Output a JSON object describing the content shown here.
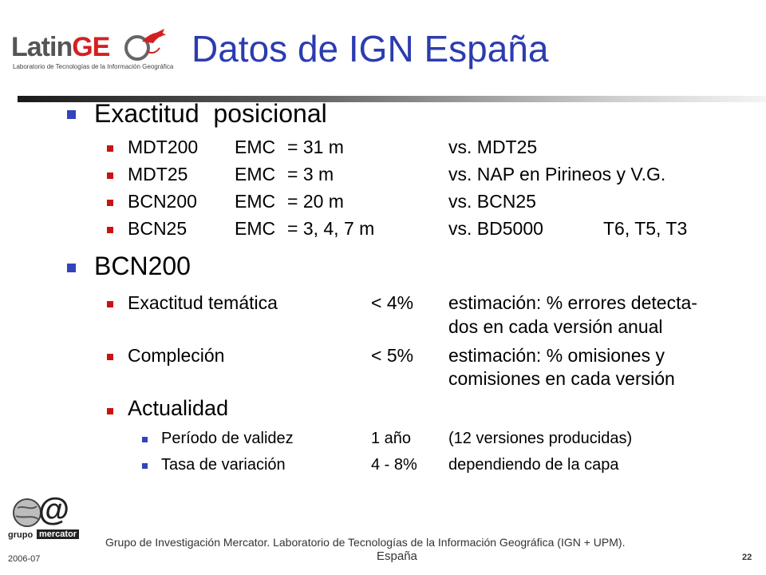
{
  "header": {
    "title": "Datos de IGN España",
    "logo": {
      "name": "LatinGE",
      "name_part1": "Latin",
      "name_part2": "GE",
      "subtitle": "Laboratorio de Tecnologías de la Información Geográfica"
    }
  },
  "content": {
    "exactitud": {
      "heading": "Exactitud  posicional",
      "rows": [
        {
          "product": "MDT200",
          "metric": "EMC",
          "value": "= 31 m",
          "ref": "vs. MDT25",
          "extra": ""
        },
        {
          "product": "MDT25",
          "metric": "EMC",
          "value": "= 3 m",
          "ref": "vs. NAP en Pirineos y V.G.",
          "extra": ""
        },
        {
          "product": "BCN200",
          "metric": "EMC",
          "value": "= 20 m",
          "ref": "vs. BCN25",
          "extra": ""
        },
        {
          "product": "BCN25",
          "metric": "EMC",
          "value": "= 3, 4, 7 m",
          "ref": "vs. BD5000",
          "extra": "T6, T5, T3"
        }
      ]
    },
    "bcn200": {
      "heading": "BCN200",
      "items": [
        {
          "label": "Exactitud temática",
          "value": "< 4%",
          "desc_line1": "estimación: % errores detecta-",
          "desc_line2": "dos en cada versión anual"
        },
        {
          "label": "Compleción",
          "value": "< 5%",
          "desc_line1": "estimación: % omisiones y",
          "desc_line2": "comisiones en cada versión"
        }
      ],
      "actualidad": {
        "heading": "Actualidad",
        "rows": [
          {
            "label": "Período de validez",
            "value": "1 año",
            "desc": "(12 versiones producidas)"
          },
          {
            "label": "Tasa de variación",
            "value": "4 - 8%",
            "desc": "dependiendo de la capa"
          }
        ]
      }
    }
  },
  "footer": {
    "line1": "Grupo de Investigación Mercator. Laboratorio de Tecnologías de la Información Geográfica (IGN + UPM).",
    "line2": "España",
    "date": "2006-07",
    "page": "22",
    "logo_text_grupo": "grupo",
    "logo_text_mercator": "mercator",
    "logo_at": "@"
  },
  "colors": {
    "title": "#2b3cb0",
    "bullet_level1": "#3344bb",
    "bullet_level2": "#cc1111",
    "logo_red": "#d42020",
    "logo_gray": "#555555"
  }
}
